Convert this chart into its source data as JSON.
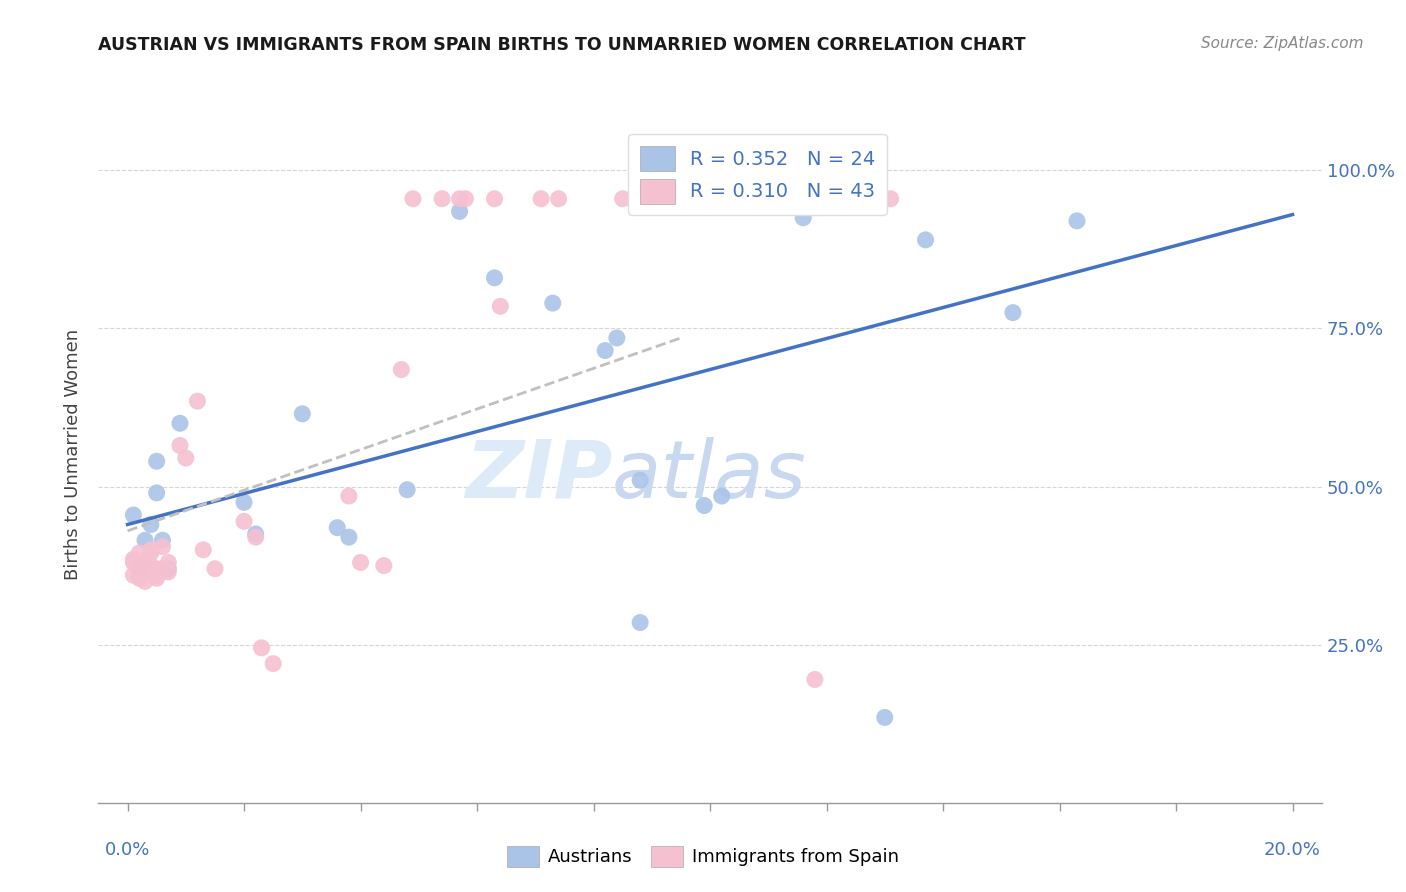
{
  "title": "AUSTRIAN VS IMMIGRANTS FROM SPAIN BIRTHS TO UNMARRIED WOMEN CORRELATION CHART",
  "source": "Source: ZipAtlas.com",
  "ylabel": "Births to Unmarried Women",
  "watermark_zip": "ZIP",
  "watermark_atlas": "atlas",
  "blue_color": "#aac4e8",
  "pink_color": "#f5c0d0",
  "blue_line_color": "#4472c4",
  "pink_line_color": "#c0c0c0",
  "legend_blue_color": "#4472c4",
  "ytick_positions": [
    0.25,
    0.5,
    0.75,
    1.0
  ],
  "ytick_labels": [
    "25.0%",
    "50.0%",
    "75.0%",
    "100.0%"
  ],
  "bg_color": "#ffffff",
  "grid_color": "#cccccc",
  "blue_scatter": [
    [
      0.001,
      0.455
    ],
    [
      0.002,
      0.37
    ],
    [
      0.003,
      0.415
    ],
    [
      0.004,
      0.44
    ],
    [
      0.005,
      0.54
    ],
    [
      0.005,
      0.49
    ],
    [
      0.006,
      0.415
    ],
    [
      0.007,
      0.37
    ],
    [
      0.009,
      0.6
    ],
    [
      0.02,
      0.475
    ],
    [
      0.022,
      0.425
    ],
    [
      0.03,
      0.615
    ],
    [
      0.036,
      0.435
    ],
    [
      0.038,
      0.42
    ],
    [
      0.048,
      0.495
    ],
    [
      0.057,
      0.935
    ],
    [
      0.063,
      0.83
    ],
    [
      0.073,
      0.79
    ],
    [
      0.082,
      0.715
    ],
    [
      0.084,
      0.735
    ],
    [
      0.088,
      0.51
    ],
    [
      0.099,
      0.47
    ],
    [
      0.102,
      0.485
    ],
    [
      0.116,
      0.925
    ],
    [
      0.137,
      0.89
    ],
    [
      0.152,
      0.775
    ],
    [
      0.163,
      0.92
    ],
    [
      0.088,
      0.285
    ],
    [
      0.13,
      0.135
    ]
  ],
  "pink_scatter": [
    [
      0.001,
      0.38
    ],
    [
      0.001,
      0.36
    ],
    [
      0.001,
      0.385
    ],
    [
      0.002,
      0.37
    ],
    [
      0.002,
      0.355
    ],
    [
      0.002,
      0.395
    ],
    [
      0.003,
      0.38
    ],
    [
      0.003,
      0.365
    ],
    [
      0.003,
      0.35
    ],
    [
      0.004,
      0.4
    ],
    [
      0.004,
      0.375
    ],
    [
      0.004,
      0.365
    ],
    [
      0.004,
      0.395
    ],
    [
      0.005,
      0.37
    ],
    [
      0.005,
      0.36
    ],
    [
      0.005,
      0.355
    ],
    [
      0.006,
      0.405
    ],
    [
      0.006,
      0.37
    ],
    [
      0.007,
      0.38
    ],
    [
      0.007,
      0.365
    ],
    [
      0.009,
      0.565
    ],
    [
      0.01,
      0.545
    ],
    [
      0.012,
      0.635
    ],
    [
      0.013,
      0.4
    ],
    [
      0.015,
      0.37
    ],
    [
      0.02,
      0.445
    ],
    [
      0.022,
      0.42
    ],
    [
      0.023,
      0.245
    ],
    [
      0.025,
      0.22
    ],
    [
      0.038,
      0.485
    ],
    [
      0.04,
      0.38
    ],
    [
      0.044,
      0.375
    ],
    [
      0.047,
      0.685
    ],
    [
      0.049,
      0.955
    ],
    [
      0.054,
      0.955
    ],
    [
      0.057,
      0.955
    ],
    [
      0.058,
      0.955
    ],
    [
      0.063,
      0.955
    ],
    [
      0.064,
      0.785
    ],
    [
      0.071,
      0.955
    ],
    [
      0.074,
      0.955
    ],
    [
      0.085,
      0.955
    ],
    [
      0.118,
      0.195
    ],
    [
      0.131,
      0.955
    ]
  ],
  "blue_trend_x": [
    0.0,
    0.2
  ],
  "blue_trend_y": [
    0.44,
    0.93
  ],
  "pink_trend_x": [
    0.0,
    0.095
  ],
  "pink_trend_y": [
    0.43,
    0.735
  ],
  "xlim": [
    -0.005,
    0.205
  ],
  "ylim": [
    0.0,
    1.1
  ],
  "xtick_positions": [
    0.0,
    0.02,
    0.04,
    0.06,
    0.08,
    0.1,
    0.12,
    0.14,
    0.16,
    0.18,
    0.2
  ]
}
